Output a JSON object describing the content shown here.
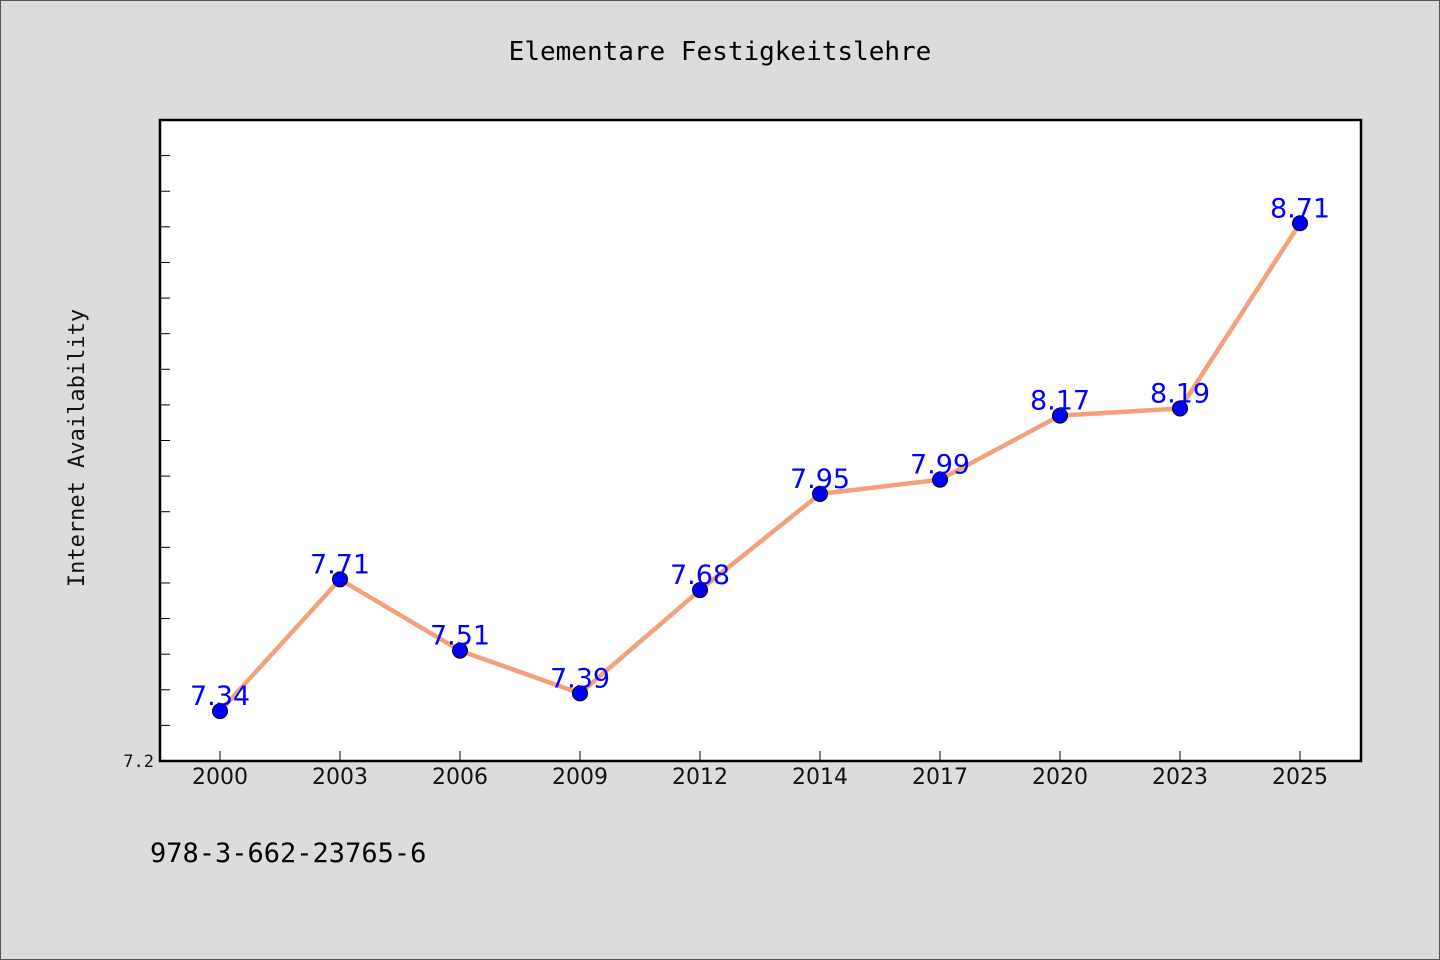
{
  "chart_data": {
    "type": "line",
    "title": "Elementare Festigkeitslehre",
    "xlabel": "",
    "ylabel": "Internet Availability",
    "categories": [
      "2000",
      "2003",
      "2006",
      "2009",
      "2012",
      "2014",
      "2017",
      "2020",
      "2023",
      "2025"
    ],
    "series": [
      {
        "values": [
          7.34,
          7.71,
          7.51,
          7.39,
          7.68,
          7.95,
          7.99,
          8.17,
          8.19,
          8.71
        ],
        "labels": [
          "7.34",
          "7.71",
          "7.51",
          "7.39",
          "7.68",
          "7.95",
          "7.99",
          "8.17",
          "8.19",
          "8.71"
        ]
      }
    ],
    "ylim": [
      7.2,
      9.0
    ],
    "y_tick_labels": [
      {
        "value": 7.2,
        "label": "7.2"
      }
    ],
    "y_minor_step": 0.1,
    "grid": false,
    "legend": "none"
  },
  "footer": {
    "isbn": "978-3-662-23765-6"
  },
  "colors": {
    "line": "#f4a07a",
    "marker": "#0000ff",
    "label": "#0000ff"
  }
}
